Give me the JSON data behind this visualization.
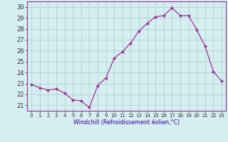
{
  "hours": [
    0,
    1,
    2,
    3,
    4,
    5,
    6,
    7,
    8,
    9,
    10,
    11,
    12,
    13,
    14,
    15,
    16,
    17,
    18,
    19,
    20,
    21,
    22,
    23
  ],
  "values": [
    22.9,
    22.6,
    22.4,
    22.5,
    22.1,
    21.5,
    21.4,
    20.8,
    22.8,
    23.5,
    25.3,
    25.9,
    26.7,
    27.8,
    28.5,
    29.1,
    29.2,
    29.9,
    29.2,
    29.2,
    27.9,
    26.4,
    24.1,
    23.2
  ],
  "xlabel": "Windchill (Refroidissement éolien,°C)",
  "ylim": [
    20.5,
    30.5
  ],
  "yticks": [
    21,
    22,
    23,
    24,
    25,
    26,
    27,
    28,
    29,
    30
  ],
  "xticks": [
    0,
    1,
    2,
    3,
    4,
    5,
    6,
    7,
    8,
    9,
    10,
    11,
    12,
    13,
    14,
    15,
    16,
    17,
    18,
    19,
    20,
    21,
    22,
    23
  ],
  "line_color": "#993399",
  "marker_color": "#993399",
  "bg_color": "#d5eef0",
  "grid_color": "#aacccc",
  "tick_label_color": "#333333",
  "xlabel_color": "#330099",
  "border_color": "#993399",
  "xlabel_fontsize": 5.8,
  "ytick_fontsize": 6.0,
  "xtick_fontsize": 5.0
}
